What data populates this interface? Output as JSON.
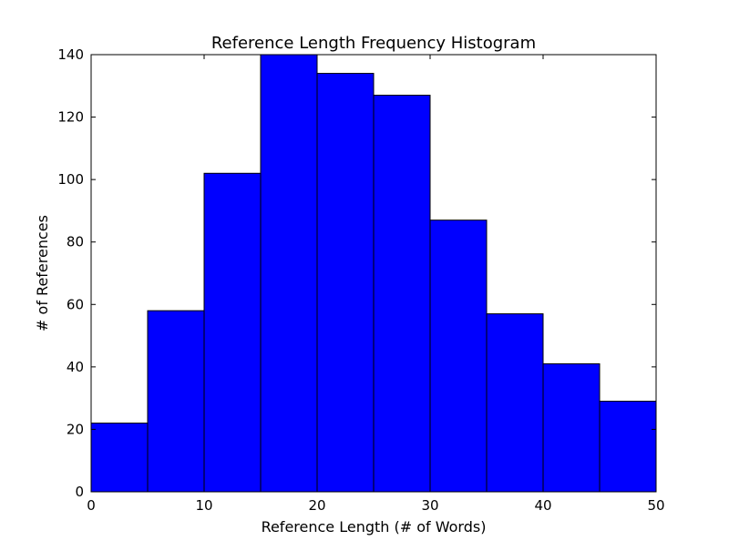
{
  "chart_data": {
    "type": "bar",
    "title": "Reference Length Frequency Histogram",
    "xlabel": "Reference Length (# of Words)",
    "ylabel": "# of References",
    "bins": [
      [
        0,
        5
      ],
      [
        5,
        10
      ],
      [
        10,
        15
      ],
      [
        15,
        20
      ],
      [
        20,
        25
      ],
      [
        25,
        30
      ],
      [
        30,
        35
      ],
      [
        35,
        40
      ],
      [
        40,
        45
      ],
      [
        45,
        50
      ]
    ],
    "values": [
      22,
      58,
      102,
      140,
      134,
      127,
      87,
      57,
      41,
      29
    ],
    "xlim": [
      0,
      50
    ],
    "ylim": [
      0,
      140
    ],
    "xticks": [
      0,
      10,
      20,
      30,
      40,
      50
    ],
    "yticks": [
      0,
      20,
      40,
      60,
      80,
      100,
      120,
      140
    ],
    "bar_color": "#0000ff",
    "edge_color": "#000000",
    "grid": false,
    "legend": "none"
  }
}
